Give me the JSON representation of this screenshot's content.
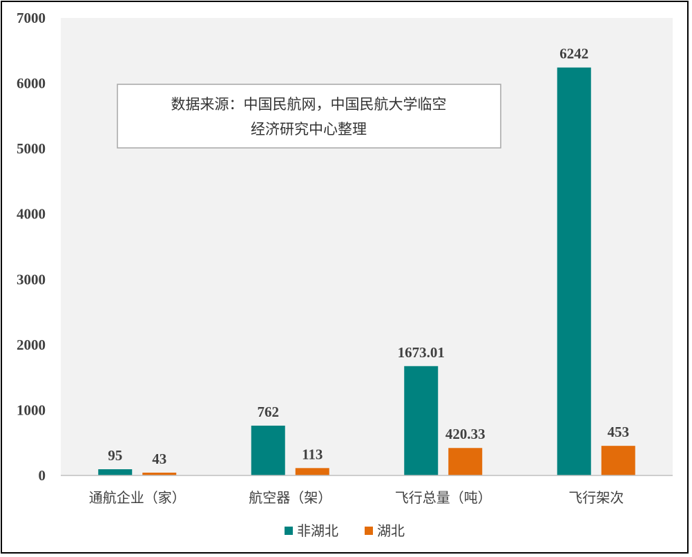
{
  "chart_data": {
    "type": "bar",
    "categories": [
      "通航企业（家）",
      "航空器（架）",
      "飞行总量（吨）",
      "飞行架次"
    ],
    "series": [
      {
        "name": "非湖北",
        "values": [
          95,
          762,
          1673.01,
          6242
        ],
        "labels": [
          "95",
          "762",
          "1673.01",
          "6242"
        ],
        "color": "#00827F"
      },
      {
        "name": "湖北",
        "values": [
          43,
          113,
          420.33,
          453
        ],
        "labels": [
          "43",
          "113",
          "420.33",
          "453"
        ],
        "color": "#E36C0A"
      }
    ],
    "ylim": [
      0,
      7000
    ],
    "yticks": [
      0,
      1000,
      2000,
      3000,
      4000,
      5000,
      6000,
      7000
    ],
    "ytick_labels": [
      "0",
      "1000",
      "2000",
      "3000",
      "4000",
      "5000",
      "6000",
      "7000"
    ],
    "annotation_lines": [
      "数据来源：中国民航网，中国民航大学临空",
      "经济研究中心整理"
    ],
    "legend_position": "bottom",
    "grid": false,
    "plot_background": "#F2F2F2"
  }
}
